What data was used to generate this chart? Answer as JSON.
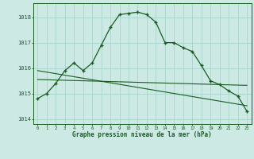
{
  "x": [
    0,
    1,
    2,
    3,
    4,
    5,
    6,
    7,
    8,
    9,
    10,
    11,
    12,
    13,
    14,
    15,
    16,
    17,
    18,
    19,
    20,
    21,
    22,
    23
  ],
  "y_main": [
    1014.8,
    1015.0,
    1015.4,
    1015.9,
    1016.2,
    1015.9,
    1016.2,
    1016.9,
    1017.6,
    1018.1,
    1018.15,
    1018.2,
    1018.1,
    1017.8,
    1017.0,
    1017.0,
    1016.8,
    1016.65,
    1016.1,
    1015.5,
    1015.35,
    1015.1,
    1014.9,
    1014.3
  ],
  "y_line1": [
    1015.55,
    1015.54,
    1015.53,
    1015.52,
    1015.51,
    1015.5,
    1015.49,
    1015.48,
    1015.47,
    1015.46,
    1015.45,
    1015.44,
    1015.43,
    1015.42,
    1015.41,
    1015.4,
    1015.39,
    1015.38,
    1015.37,
    1015.36,
    1015.35,
    1015.34,
    1015.33,
    1015.32
  ],
  "y_line2": [
    1015.9,
    1015.84,
    1015.78,
    1015.72,
    1015.66,
    1015.6,
    1015.54,
    1015.48,
    1015.42,
    1015.36,
    1015.3,
    1015.24,
    1015.18,
    1015.12,
    1015.06,
    1015.0,
    1014.94,
    1014.88,
    1014.82,
    1014.76,
    1014.7,
    1014.64,
    1014.58,
    1014.52
  ],
  "bg_color": "#cce9e4",
  "line_color": "#1a5c20",
  "grid_color": "#a8d5cc",
  "xlabel": "Graphe pression niveau de la mer (hPa)",
  "ylim": [
    1013.8,
    1018.55
  ],
  "xlim": [
    -0.5,
    23.5
  ],
  "yticks": [
    1014,
    1015,
    1016,
    1017,
    1018
  ],
  "xticks": [
    0,
    1,
    2,
    3,
    4,
    5,
    6,
    7,
    8,
    9,
    10,
    11,
    12,
    13,
    14,
    15,
    16,
    17,
    18,
    19,
    20,
    21,
    22,
    23
  ]
}
